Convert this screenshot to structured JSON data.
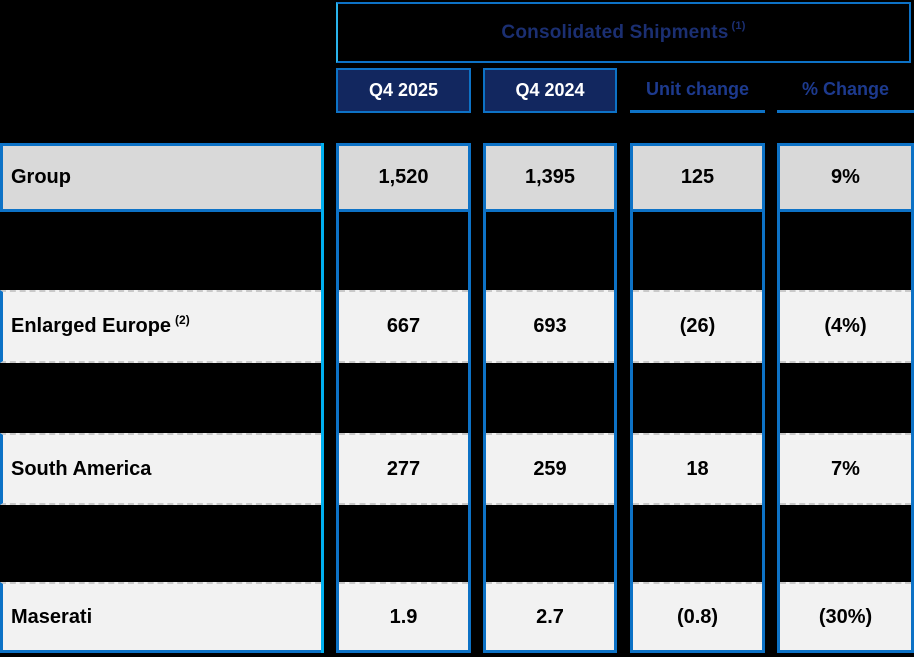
{
  "table": {
    "title": {
      "text": "Consolidated Shipments",
      "superscript": "(1)"
    },
    "column_headers": [
      {
        "label": "Q4 2025"
      },
      {
        "label": "Q4 2024"
      },
      {
        "label": "Unit change"
      },
      {
        "label": "% Change"
      }
    ],
    "rows": [
      {
        "label": "Group",
        "superscript": "",
        "values": [
          "1,520",
          "1,395",
          "125",
          "9%"
        ]
      },
      {
        "label": "Enlarged Europe",
        "superscript": "(2)",
        "values": [
          "667",
          "693",
          "(26)",
          "(4%)"
        ]
      },
      {
        "label": "South America",
        "superscript": "",
        "values": [
          "277",
          "259",
          "18",
          "7%"
        ]
      },
      {
        "label": "Maserati",
        "superscript": "",
        "values": [
          "1.9",
          "2.7",
          "(0.8)",
          "(30%)"
        ]
      }
    ]
  },
  "colors": {
    "background": "#000000",
    "border_blue": "#0d72c6",
    "border_cyan": "#00b0f0",
    "navy_fill": "#12275f",
    "title_navy_text": "#1b2f72",
    "subheader_blue_text": "#1d3a8e",
    "group_row_fill": "#d9d9d9",
    "row_fill": "#f2f2f2",
    "header_text_white": "#ffffff",
    "row_text_black": "#000000"
  },
  "chart_data": {
    "type": "table",
    "title": "Consolidated Shipments (1)",
    "columns": [
      "",
      "Q4 2025",
      "Q4 2024",
      "Unit change",
      "% Change"
    ],
    "rows": [
      [
        "Group",
        "1,520",
        "1,395",
        "125",
        "9%"
      ],
      [
        "Enlarged Europe (2)",
        "667",
        "693",
        "(26)",
        "(4%)"
      ],
      [
        "South America",
        "277",
        "259",
        "18",
        "7%"
      ],
      [
        "Maserati",
        "1.9",
        "2.7",
        "(0.8)",
        "(30%)"
      ]
    ]
  }
}
